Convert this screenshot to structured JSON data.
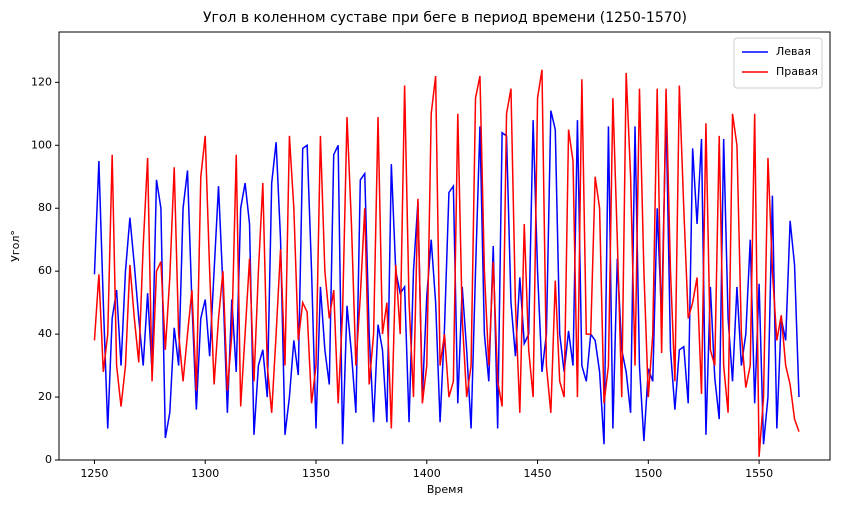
{
  "chart_data": {
    "type": "line",
    "title": "Угол в коленном суставе при беге в период времени (1250-1570)",
    "x_label": "Время",
    "y_label": "Угол°",
    "xlim": [
      1234,
      1582
    ],
    "ylim": [
      0,
      136
    ],
    "xticks": [
      1250,
      1300,
      1350,
      1400,
      1450,
      1500,
      1550
    ],
    "yticks": [
      0,
      20,
      40,
      60,
      80,
      100,
      120
    ],
    "legend": "upper right",
    "x": [
      1250,
      1252,
      1254,
      1256,
      1258,
      1260,
      1262,
      1264,
      1266,
      1268,
      1270,
      1272,
      1274,
      1276,
      1278,
      1280,
      1282,
      1284,
      1286,
      1288,
      1290,
      1292,
      1294,
      1296,
      1298,
      1300,
      1302,
      1304,
      1306,
      1308,
      1310,
      1312,
      1314,
      1316,
      1318,
      1320,
      1322,
      1324,
      1326,
      1328,
      1330,
      1332,
      1334,
      1336,
      1338,
      1340,
      1342,
      1344,
      1346,
      1348,
      1350,
      1352,
      1354,
      1356,
      1358,
      1360,
      1362,
      1364,
      1366,
      1368,
      1370,
      1372,
      1374,
      1376,
      1378,
      1380,
      1382,
      1384,
      1386,
      1388,
      1390,
      1392,
      1394,
      1396,
      1398,
      1400,
      1402,
      1404,
      1406,
      1408,
      1410,
      1412,
      1414,
      1416,
      1418,
      1420,
      1422,
      1424,
      1426,
      1428,
      1430,
      1432,
      1434,
      1436,
      1438,
      1440,
      1442,
      1444,
      1446,
      1448,
      1450,
      1452,
      1454,
      1456,
      1458,
      1460,
      1462,
      1464,
      1466,
      1468,
      1470,
      1472,
      1474,
      1476,
      1478,
      1480,
      1482,
      1484,
      1486,
      1488,
      1490,
      1492,
      1494,
      1496,
      1498,
      1500,
      1502,
      1504,
      1506,
      1508,
      1510,
      1512,
      1514,
      1516,
      1518,
      1520,
      1522,
      1524,
      1526,
      1528,
      1530,
      1532,
      1534,
      1536,
      1538,
      1540,
      1542,
      1544,
      1546,
      1548,
      1550,
      1552,
      1554,
      1556,
      1558,
      1560,
      1562,
      1564,
      1566,
      1568
    ],
    "series": [
      {
        "name": "Левая",
        "color": "#0000ff",
        "values": [
          59,
          95,
          50,
          10,
          45,
          54,
          30,
          60,
          77,
          62,
          45,
          30,
          53,
          28,
          89,
          80,
          7,
          15,
          42,
          30,
          80,
          92,
          50,
          16,
          45,
          51,
          33,
          60,
          87,
          55,
          15,
          51,
          28,
          80,
          88,
          75,
          8,
          30,
          35,
          20,
          88,
          101,
          70,
          8,
          20,
          38,
          27,
          99,
          100,
          60,
          10,
          55,
          35,
          24,
          97,
          100,
          5,
          49,
          34,
          15,
          89,
          91,
          40,
          12,
          43,
          35,
          12,
          94,
          60,
          53,
          55,
          12,
          60,
          82,
          20,
          52,
          70,
          50,
          12,
          42,
          85,
          87,
          18,
          55,
          35,
          10,
          60,
          106,
          40,
          25,
          68,
          10,
          104,
          103,
          50,
          33,
          58,
          37,
          40,
          108,
          60,
          28,
          40,
          111,
          105,
          40,
          28,
          41,
          30,
          108,
          30,
          25,
          40,
          38,
          28,
          5,
          106,
          10,
          64,
          35,
          28,
          15,
          106,
          30,
          6,
          29,
          25,
          80,
          45,
          111,
          35,
          16,
          35,
          36,
          18,
          99,
          75,
          102,
          8,
          55,
          26,
          13,
          102,
          45,
          25,
          55,
          30,
          40,
          70,
          18,
          56,
          5,
          20,
          84,
          10,
          45,
          38,
          76,
          62,
          20
        ]
      },
      {
        "name": "Правая",
        "color": "#ff0000",
        "values": [
          38,
          59,
          28,
          40,
          97,
          30,
          17,
          30,
          62,
          45,
          31,
          68,
          96,
          25,
          60,
          63,
          35,
          58,
          93,
          40,
          25,
          40,
          54,
          22,
          90,
          103,
          60,
          24,
          45,
          60,
          22,
          40,
          97,
          17,
          40,
          64,
          25,
          60,
          88,
          30,
          15,
          40,
          67,
          30,
          103,
          80,
          38,
          50,
          47,
          18,
          30,
          103,
          60,
          45,
          54,
          18,
          47,
          109,
          75,
          30,
          52,
          80,
          24,
          40,
          109,
          40,
          50,
          10,
          62,
          40,
          119,
          50,
          20,
          83,
          18,
          30,
          110,
          122,
          30,
          40,
          20,
          25,
          110,
          45,
          20,
          30,
          115,
          122,
          60,
          30,
          63,
          25,
          17,
          110,
          118,
          50,
          15,
          75,
          35,
          20,
          115,
          124,
          30,
          15,
          57,
          25,
          20,
          105,
          95,
          20,
          121,
          40,
          40,
          90,
          80,
          18,
          30,
          115,
          70,
          20,
          123,
          90,
          30,
          118,
          60,
          20,
          40,
          118,
          34,
          118,
          60,
          25,
          119,
          80,
          45,
          50,
          58,
          21,
          107,
          35,
          30,
          103,
          30,
          15,
          110,
          100,
          40,
          23,
          30,
          110,
          1,
          20,
          96,
          60,
          38,
          46,
          30,
          24,
          13,
          9
        ]
      }
    ]
  }
}
